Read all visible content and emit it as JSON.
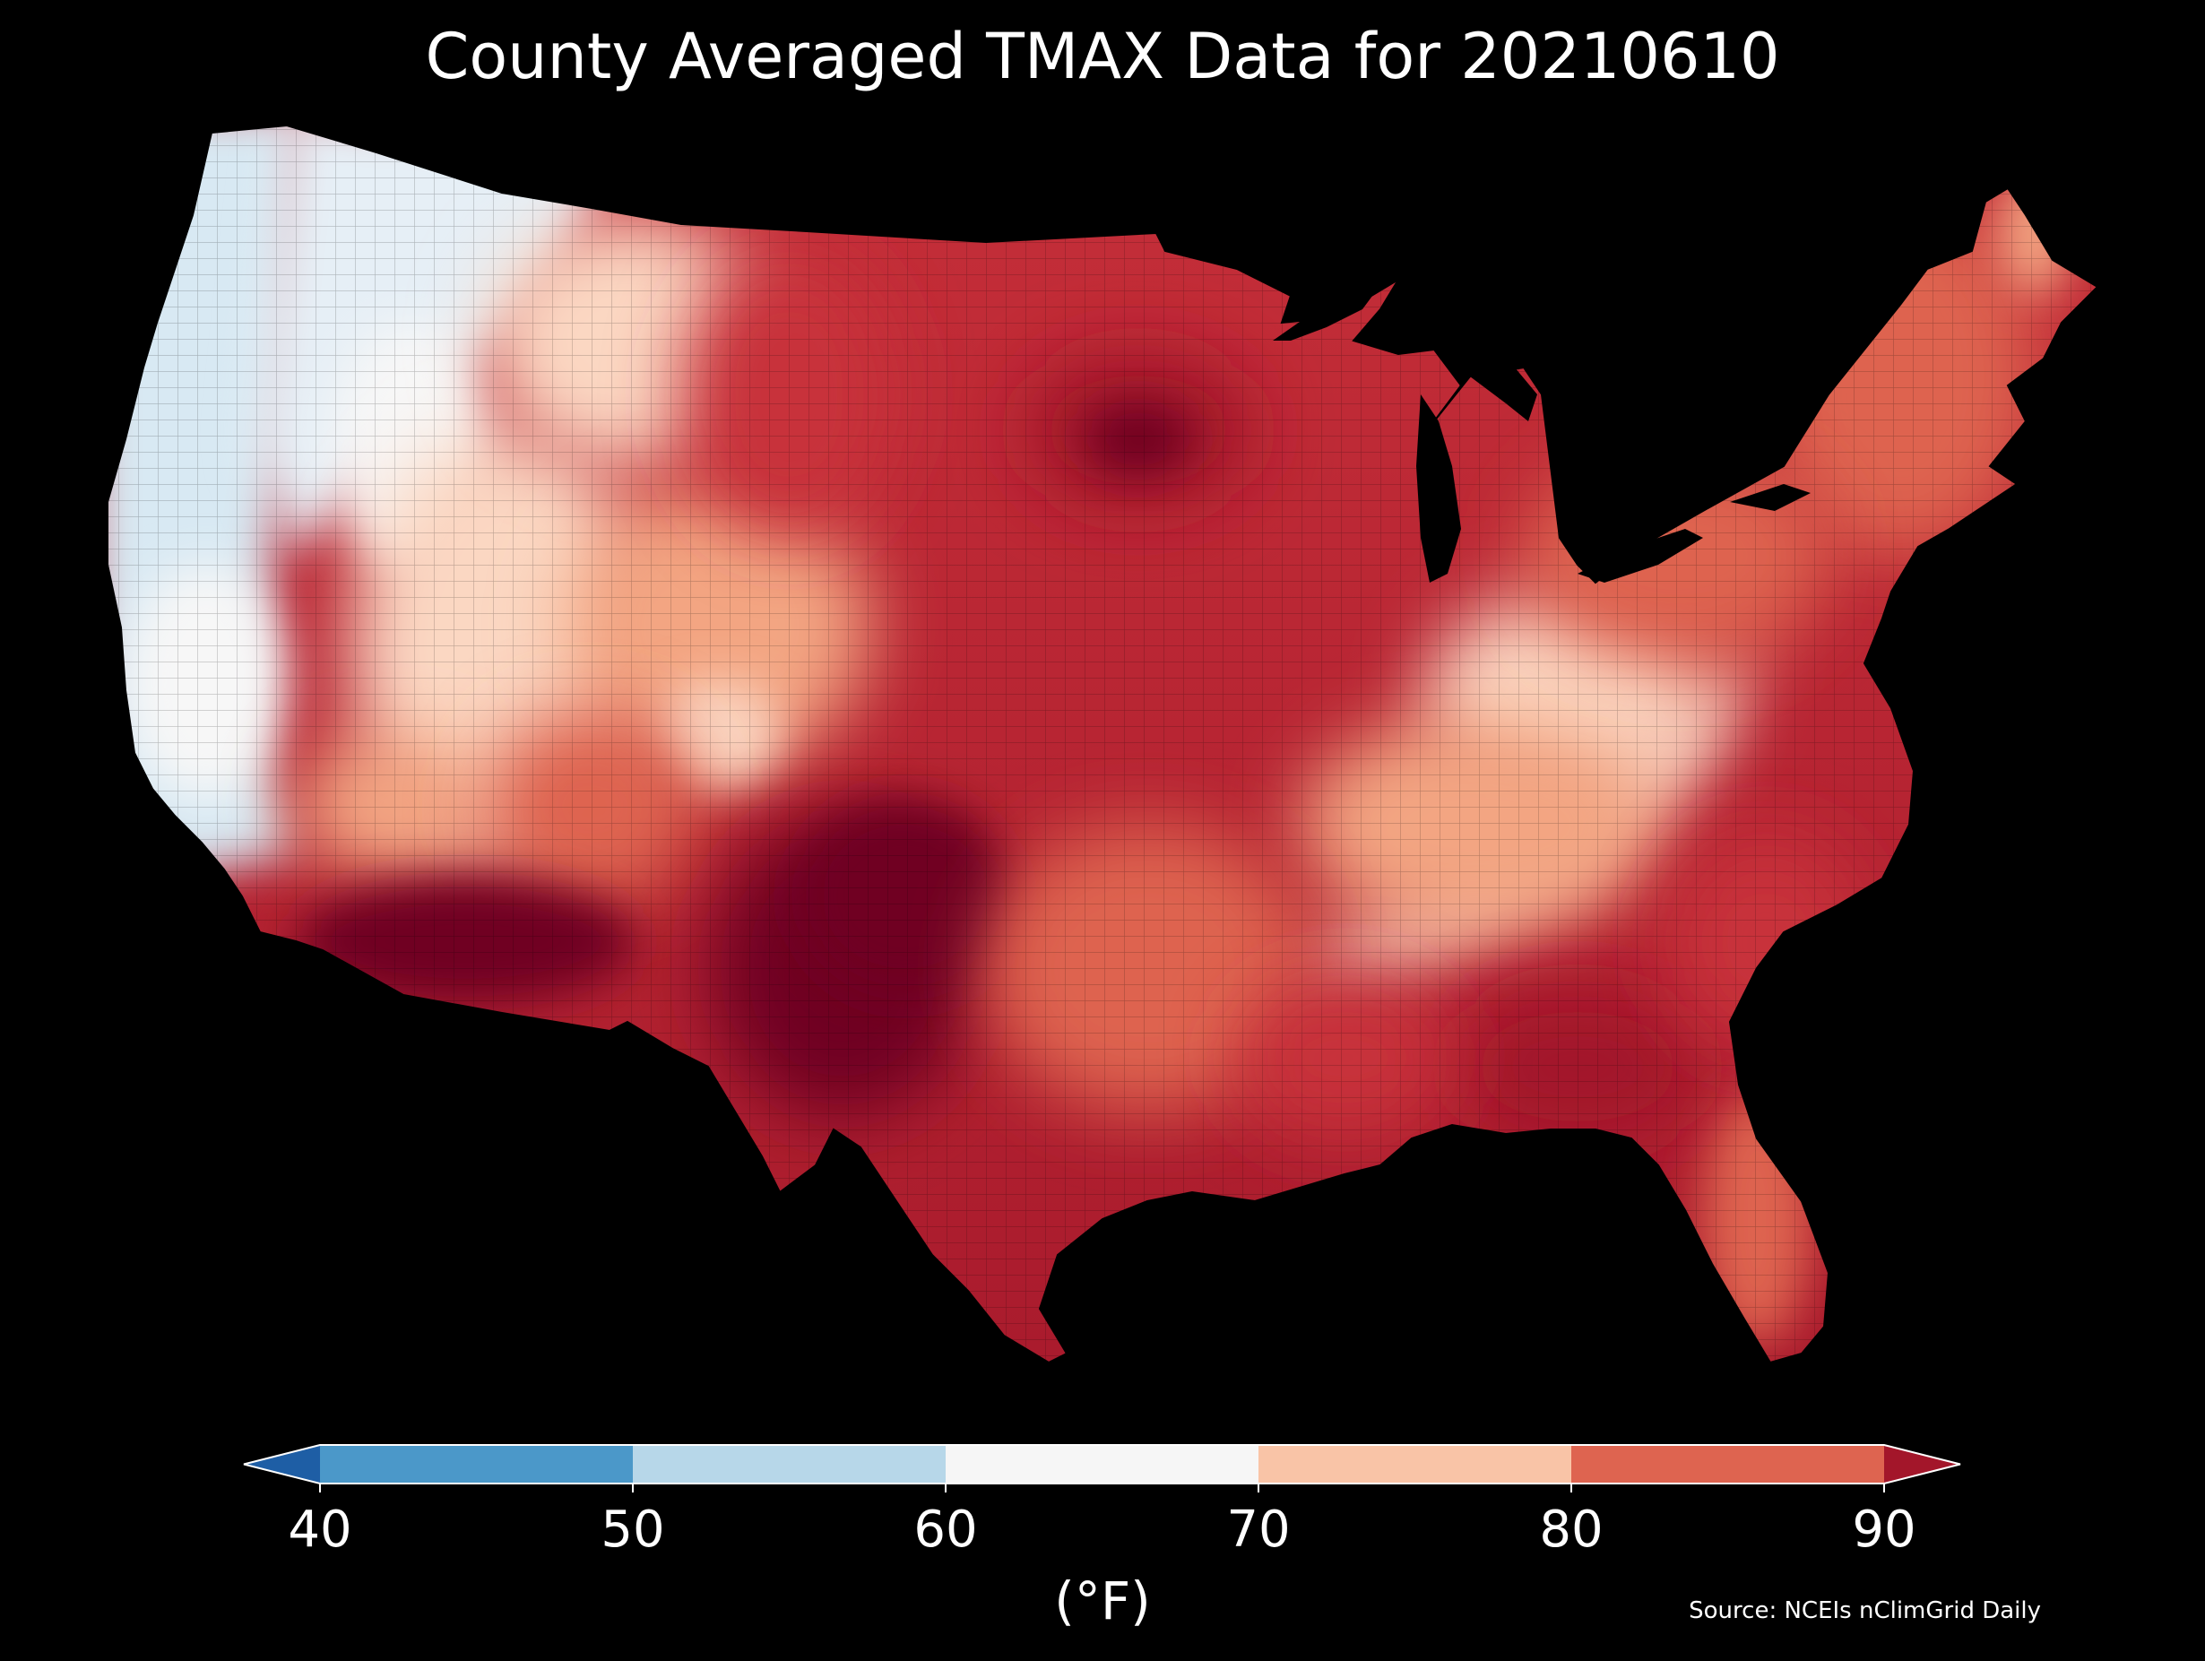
{
  "title": "County Averaged TMAX Data for 20210610",
  "colorbar": {
    "unit": "(°F)",
    "ticks": [
      "40",
      "50",
      "60",
      "70",
      "80",
      "90"
    ],
    "bins": [
      {
        "from": 40,
        "to": 50,
        "color": "#4b98c9"
      },
      {
        "from": 50,
        "to": 60,
        "color": "#b7d7e9"
      },
      {
        "from": 60,
        "to": 70,
        "color": "#f6f6f6"
      },
      {
        "from": 70,
        "to": 80,
        "color": "#f9c4a7"
      },
      {
        "from": 80,
        "to": 90,
        "color": "#de6450"
      }
    ],
    "under_color": "#1e5ea5",
    "over_color": "#a3162a",
    "extend": "both"
  },
  "map": {
    "region": "contiguous-us",
    "background": "#000000",
    "land_palette": [
      "#d8e9f3",
      "#f7f7f7",
      "#fbd7c2",
      "#f3a582",
      "#de6450",
      "#c8313a",
      "#a3162a",
      "#6f0420"
    ]
  },
  "source": "Source: NCEIs nClimGrid Daily"
}
